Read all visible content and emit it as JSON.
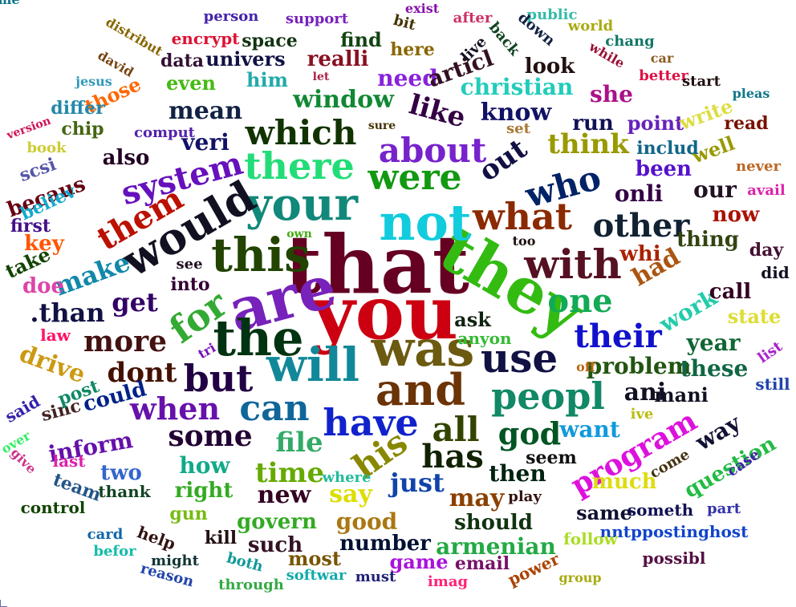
{
  "words": [
    {
      "text": "that",
      "color": "#660022"
    },
    {
      "text": "you",
      "color": "#cc0011"
    },
    {
      "text": "they",
      "color": "#33bb11"
    },
    {
      "text": "are",
      "color": "#7722bb"
    },
    {
      "text": "was",
      "color": "#6b5a10"
    },
    {
      "text": "not",
      "color": "#11ccdd"
    },
    {
      "text": "and",
      "color": "#6b3306"
    },
    {
      "text": "your",
      "color": "#11887a"
    },
    {
      "text": "this",
      "color": "#224400"
    },
    {
      "text": "the",
      "color": "#003311"
    },
    {
      "text": "will",
      "color": "#118899"
    },
    {
      "text": "would",
      "color": "#111122"
    },
    {
      "text": "with",
      "color": "#551122"
    },
    {
      "text": "have",
      "color": "#1122cc"
    },
    {
      "text": "use",
      "color": "#111144"
    },
    {
      "text": "peopl",
      "color": "#118866"
    },
    {
      "text": "there",
      "color": "#22dd77"
    },
    {
      "text": "what",
      "color": "#8b2a00"
    },
    {
      "text": "but",
      "color": "#220044"
    },
    {
      "text": "for",
      "color": "#33aa33"
    },
    {
      "text": "were",
      "color": "#119911"
    },
    {
      "text": "about",
      "color": "#7722cc"
    },
    {
      "text": "which",
      "color": "#113300"
    },
    {
      "text": "who",
      "color": "#002266"
    },
    {
      "text": "other",
      "color": "#112233"
    },
    {
      "text": "can",
      "color": "#116699"
    },
    {
      "text": "all",
      "color": "#334400"
    },
    {
      "text": "his",
      "color": "#888800"
    },
    {
      "text": "has",
      "color": "#112200"
    },
    {
      "text": "them",
      "color": "#bb1100"
    },
    {
      "text": "system",
      "color": "#6611bb"
    },
    {
      "text": "one",
      "color": "#11aa55"
    },
    {
      "text": "their",
      "color": "#1111cc"
    },
    {
      "text": "god",
      "color": "#005522"
    },
    {
      "text": "when",
      "color": "#6611aa"
    },
    {
      "text": "more",
      "color": "#441111"
    },
    {
      "text": "dont",
      "color": "#441100"
    },
    {
      "text": "some",
      "color": "#220033"
    },
    {
      "text": "file",
      "color": "#33aa66"
    },
    {
      "text": "time",
      "color": "#66aa00"
    },
    {
      "text": "program",
      "color": "#dd11dd"
    },
    {
      "text": "out",
      "color": "#111144"
    },
    {
      "text": "think",
      "color": "#999900"
    },
    {
      "text": "like",
      "color": "#330044"
    },
    {
      "text": "window",
      "color": "#118833"
    },
    {
      "text": "know",
      "color": "#111166"
    },
    {
      "text": "get",
      "color": "#330066"
    },
    {
      "text": "had",
      "color": "#aa5511"
    },
    {
      "text": "work",
      "color": "#22ccaa"
    },
    {
      "text": ".than",
      "color": "#111144"
    },
    {
      "text": "make",
      "color": "#1188aa"
    },
    {
      "text": "just",
      "color": "#1144aa"
    },
    {
      "text": "say",
      "color": "#dddd00"
    },
    {
      "text": "new",
      "color": "#330022"
    },
    {
      "text": "may",
      "color": "#8b4000"
    },
    {
      "text": "then",
      "color": "#002211"
    },
    {
      "text": "how",
      "color": "#11aa88"
    },
    {
      "text": "right",
      "color": "#33aa22"
    },
    {
      "text": "could",
      "color": "#002288"
    },
    {
      "text": "good",
      "color": "#aa7711"
    },
    {
      "text": "should",
      "color": "#113311"
    },
    {
      "text": "armenian",
      "color": "#22aa44"
    },
    {
      "text": "number",
      "color": "#001133"
    },
    {
      "text": "game",
      "color": "#aa11dd"
    },
    {
      "text": "mean",
      "color": "#112244"
    },
    {
      "text": "problem",
      "color": "#225511"
    },
    {
      "text": "ani",
      "color": "#111122"
    },
    {
      "text": "year",
      "color": "#116633"
    },
    {
      "text": "these",
      "color": "#116644"
    },
    {
      "text": "want",
      "color": "#1199dd"
    },
    {
      "text": "onli",
      "color": "#330044"
    },
    {
      "text": "been",
      "color": "#5511cc"
    },
    {
      "text": "our",
      "color": "#221122"
    },
    {
      "text": "now",
      "color": "#aa1100"
    },
    {
      "text": "thing",
      "color": "#334411"
    },
    {
      "text": "whi",
      "color": "#aa2200"
    },
    {
      "text": "call",
      "color": "#330022"
    },
    {
      "text": "state",
      "color": "#dddd33"
    },
    {
      "text": "way",
      "color": "#111133"
    },
    {
      "text": "question",
      "color": "#22bb44"
    },
    {
      "text": "inform",
      "color": "#6611aa"
    },
    {
      "text": "two",
      "color": "#3366cc"
    },
    {
      "text": "such",
      "color": "#331122"
    },
    {
      "text": "govern",
      "color": "#33aa22"
    },
    {
      "text": "most",
      "color": "#775500"
    },
    {
      "text": "same",
      "color": "#111133"
    },
    {
      "text": "much",
      "color": "#dddd11"
    },
    {
      "text": "mani",
      "color": "#111122"
    },
    {
      "text": "veri",
      "color": "#111166"
    },
    {
      "text": "also",
      "color": "#220022"
    },
    {
      "text": "drive",
      "color": "#cc9911"
    },
    {
      "text": "becaus",
      "color": "#660011"
    },
    {
      "text": "key",
      "color": "#ff5500"
    },
    {
      "text": "doe",
      "color": "#dd44aa"
    },
    {
      "text": "into",
      "color": "#330033"
    },
    {
      "text": "see",
      "color": "#221122"
    },
    {
      "text": "she",
      "color": "#aa1188"
    },
    {
      "text": "christian",
      "color": "#22ccbb"
    },
    {
      "text": "need",
      "color": "#8822dd"
    },
    {
      "text": "articl",
      "color": "#331122"
    },
    {
      "text": "look",
      "color": "#221111"
    },
    {
      "text": "point",
      "color": "#6622bb"
    },
    {
      "text": "run",
      "color": "#111155"
    },
    {
      "text": "well",
      "color": "#999900"
    },
    {
      "text": "includ",
      "color": "#116688"
    },
    {
      "text": "write",
      "color": "#dddd44"
    },
    {
      "text": "read",
      "color": "#771100"
    },
    {
      "text": "realli",
      "color": "#881122"
    },
    {
      "text": "univers",
      "color": "#111144"
    },
    {
      "text": "space",
      "color": "#113311"
    },
    {
      "text": "data",
      "color": "#331133"
    },
    {
      "text": "find",
      "color": "#114411"
    },
    {
      "text": "here",
      "color": "#886600"
    },
    {
      "text": "him",
      "color": "#22aaaa"
    },
    {
      "text": "even",
      "color": "#44bb11"
    },
    {
      "text": "those",
      "color": "#ff6600"
    },
    {
      "text": "differ",
      "color": "#2288aa"
    },
    {
      "text": "chip",
      "color": "#446611"
    },
    {
      "text": "comput",
      "color": "#5522aa"
    },
    {
      "text": "scsi",
      "color": "#5555aa"
    },
    {
      "text": "believ",
      "color": "#11aacc"
    },
    {
      "text": "first",
      "color": "#441188"
    },
    {
      "text": "take",
      "color": "#114400"
    },
    {
      "text": "law",
      "color": "#ff1166"
    },
    {
      "text": "sinc",
      "color": "#442222"
    },
    {
      "text": "post",
      "color": "#118866"
    },
    {
      "text": "said",
      "color": "#3322aa"
    },
    {
      "text": "over",
      "color": "#33ee66"
    },
    {
      "text": "give",
      "color": "#cc3388"
    },
    {
      "text": "last",
      "color": "#dd22aa"
    },
    {
      "text": "team",
      "color": "#225588"
    },
    {
      "text": "control",
      "color": "#114400"
    },
    {
      "text": "thank",
      "color": "#114422"
    },
    {
      "text": "gun",
      "color": "#77bb11"
    },
    {
      "text": "where",
      "color": "#22bb99"
    },
    {
      "text": "kill",
      "color": "#221111"
    },
    {
      "text": "help",
      "color": "#331111"
    },
    {
      "text": "card",
      "color": "#1166aa"
    },
    {
      "text": "befor",
      "color": "#11bbaa"
    },
    {
      "text": "might",
      "color": "#113333"
    },
    {
      "text": "both",
      "color": "#119999"
    },
    {
      "text": "reason",
      "color": "#2244aa"
    },
    {
      "text": "through",
      "color": "#33aa44"
    },
    {
      "text": "softwar",
      "color": "#11aaaa"
    },
    {
      "text": "must",
      "color": "#222277"
    },
    {
      "text": "imag",
      "color": "#ff2277"
    },
    {
      "text": "email",
      "color": "#771166"
    },
    {
      "text": "power",
      "color": "#aa4400"
    },
    {
      "text": "group",
      "color": "#aaaa11"
    },
    {
      "text": "possibl",
      "color": "#551144"
    },
    {
      "text": "nntppostinghost",
      "color": "#1144cc"
    },
    {
      "text": "follow",
      "color": "#aadd22"
    },
    {
      "text": "someth",
      "color": "#111155"
    },
    {
      "text": "part",
      "color": "#3333aa"
    },
    {
      "text": "play",
      "color": "#331111"
    },
    {
      "text": "seem",
      "color": "#111111"
    },
    {
      "text": "come",
      "color": "#443311"
    },
    {
      "text": "case",
      "color": "#4422aa"
    },
    {
      "text": "anyon",
      "color": "#33bb33"
    },
    {
      "text": "ask",
      "color": "#112211"
    },
    {
      "text": "tri",
      "color": "#7711bb"
    },
    {
      "text": "off",
      "color": "#bb6611"
    },
    {
      "text": "ive",
      "color": "#bbbb11"
    },
    {
      "text": "too",
      "color": "#221111"
    },
    {
      "text": "own",
      "color": "#44aa11"
    },
    {
      "text": "set",
      "color": "#aa7733"
    },
    {
      "text": "sure",
      "color": "#443300"
    },
    {
      "text": "let",
      "color": "#aa2244"
    },
    {
      "text": "never",
      "color": "#bb6622"
    },
    {
      "text": "avail",
      "color": "#dd22aa"
    },
    {
      "text": "day",
      "color": "#441133"
    },
    {
      "text": "did",
      "color": "#111122"
    },
    {
      "text": "still",
      "color": "#2244aa"
    },
    {
      "text": "list",
      "color": "#aa22cc"
    },
    {
      "text": "car",
      "color": "#8b5a22"
    },
    {
      "text": "better",
      "color": "#dd1144"
    },
    {
      "text": "start",
      "color": "#221111"
    },
    {
      "text": "pleas",
      "color": "#117788"
    },
    {
      "text": "chang",
      "color": "#117766"
    },
    {
      "text": "while",
      "color": "#991133"
    },
    {
      "text": "world",
      "color": "#aaaa11"
    },
    {
      "text": "public",
      "color": "#33bbaa"
    },
    {
      "text": "down",
      "color": "#112244"
    },
    {
      "text": "back",
      "color": "#114422"
    },
    {
      "text": "after",
      "color": "#cc3366"
    },
    {
      "text": "exist",
      "color": "#8811aa"
    },
    {
      "text": "live",
      "color": "#111122"
    },
    {
      "text": "bit",
      "color": "#443300"
    },
    {
      "text": "support",
      "color": "#7722bb"
    },
    {
      "text": "person",
      "color": "#4422aa"
    },
    {
      "text": "encrypt",
      "color": "#dd1133"
    },
    {
      "text": "distribut",
      "color": "#886600"
    },
    {
      "text": "david",
      "color": "#774411"
    },
    {
      "text": "jesus",
      "color": "#3399bb"
    },
    {
      "text": "version",
      "color": "#cc1155"
    },
    {
      "text": "book",
      "color": "#cccc33"
    },
    {
      "text": "name",
      "color": "#117788"
    }
  ]
}
